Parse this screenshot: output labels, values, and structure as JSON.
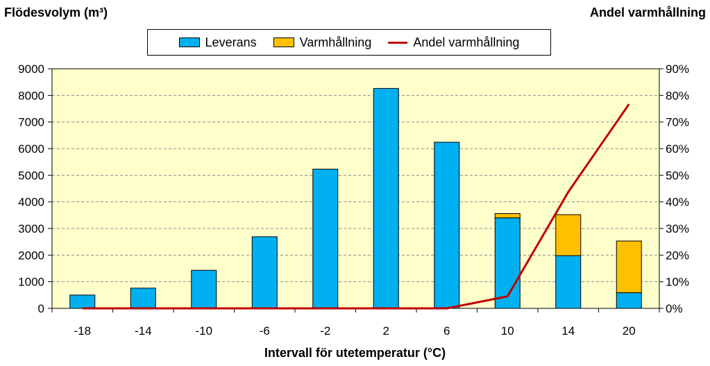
{
  "chart_data": {
    "type": "bar",
    "stacked": true,
    "categories": [
      "-18",
      "-14",
      "-10",
      "-6",
      "-2",
      "2",
      "6",
      "10",
      "14",
      "20"
    ],
    "series": [
      {
        "name": "Leverans",
        "axis": "left",
        "values": [
          500,
          760,
          1430,
          2690,
          5230,
          8260,
          6240,
          3400,
          1980,
          590
        ],
        "color": "#00b0f0"
      },
      {
        "name": "Varmhållning",
        "axis": "left",
        "values": [
          0,
          0,
          0,
          0,
          0,
          0,
          0,
          160,
          1540,
          1940
        ],
        "color": "#ffc000"
      },
      {
        "name": "Andel varmhållning",
        "axis": "right",
        "type": "line",
        "values": [
          0,
          0,
          0,
          0,
          0,
          0,
          0,
          4.5,
          43.7,
          76.7
        ],
        "color": "#c00000"
      }
    ],
    "ylabel_left": "Flödesvolym (m³)",
    "ylabel_right": "Andel varmhållning",
    "xlabel": "Intervall för utetemperatur (°C)",
    "ylim_left": [
      0,
      9000
    ],
    "ylim_right": [
      0,
      90
    ],
    "yticks_left": [
      "0",
      "1000",
      "2000",
      "3000",
      "4000",
      "5000",
      "6000",
      "7000",
      "8000",
      "9000"
    ],
    "yticks_right": [
      "0%",
      "10%",
      "20%",
      "30%",
      "40%",
      "50%",
      "60%",
      "70%",
      "80%",
      "90%"
    ],
    "grid": true,
    "plot_background": "#ffffcc",
    "legend_position": "top"
  }
}
